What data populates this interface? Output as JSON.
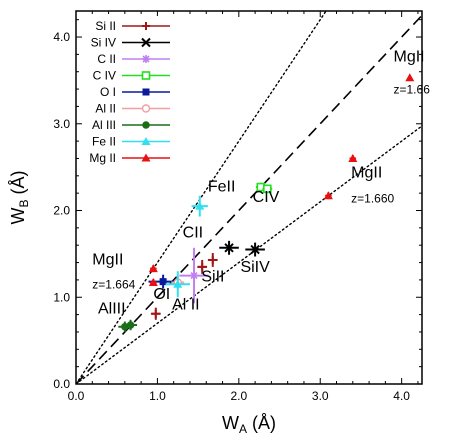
{
  "chart_data": {
    "type": "scatter",
    "title": "",
    "xlabel": {
      "main": "W",
      "sub": "A",
      "unit": " (Å)"
    },
    "ylabel": {
      "main": "W",
      "sub": "B",
      "unit": " (Å)"
    },
    "xlim": [
      0,
      4.25
    ],
    "ylim": [
      0,
      4.3
    ],
    "x_ticks": [
      0,
      1,
      2,
      3,
      4
    ],
    "x_tick_labels": [
      "0.0",
      "1.0",
      "2.0",
      "3.0",
      "4.0"
    ],
    "y_ticks": [
      0,
      1,
      2,
      3,
      4
    ],
    "y_tick_labels": [
      "0.0",
      "1.0",
      "2.0",
      "3.0",
      "4.0"
    ],
    "grid": false,
    "legend_position": "top-left",
    "reference_lines": [
      {
        "slope": 0.7,
        "style": "dotted"
      },
      {
        "slope": 1.0,
        "style": "dashed"
      },
      {
        "slope": 1.4,
        "style": "dotted"
      }
    ],
    "series": [
      {
        "name": "Si II",
        "color": "#a01818",
        "marker": "plus",
        "points": [
          {
            "x": 0.98,
            "y": 0.81,
            "xerr": 0.06,
            "yerr": 0.07
          },
          {
            "x": 1.55,
            "y": 1.35,
            "xerr": 0.06,
            "yerr": 0.08
          },
          {
            "x": 1.68,
            "y": 1.43,
            "xerr": 0.06,
            "yerr": 0.08
          }
        ]
      },
      {
        "name": "Si IV",
        "color": "#000000",
        "marker": "x",
        "points": [
          {
            "x": 1.88,
            "y": 1.57,
            "xerr": 0.12,
            "yerr": 0.08
          },
          {
            "x": 2.2,
            "y": 1.55,
            "xerr": 0.12,
            "yerr": 0.08
          }
        ]
      },
      {
        "name": "C II",
        "color": "#c080f0",
        "marker": "star",
        "points": [
          {
            "x": 1.45,
            "y": 1.25,
            "xerr": 0.18,
            "yerr": 0.32
          }
        ]
      },
      {
        "name": "C IV",
        "color": "#20e020",
        "marker": "square-open",
        "points": [
          {
            "x": 2.27,
            "y": 2.27,
            "xerr": 0.06,
            "yerr": 0.05
          },
          {
            "x": 2.35,
            "y": 2.25,
            "xerr": 0.06,
            "yerr": 0.05
          }
        ]
      },
      {
        "name": "O I",
        "color": "#0a1a9a",
        "marker": "square",
        "points": [
          {
            "x": 1.07,
            "y": 1.18,
            "xerr": 0.18,
            "yerr": 0.08
          }
        ]
      },
      {
        "name": "Al II",
        "color": "#f0a0a0",
        "marker": "circle-open",
        "points": [
          {
            "x": 1.25,
            "y": 1.17,
            "xerr": 0.08,
            "yerr": 0.08
          }
        ]
      },
      {
        "name": "Al III",
        "color": "#1a6e1a",
        "marker": "circle",
        "points": [
          {
            "x": 0.6,
            "y": 0.66,
            "xerr": 0.08,
            "yerr": 0.06
          },
          {
            "x": 0.67,
            "y": 0.68,
            "xerr": 0.08,
            "yerr": 0.06
          }
        ]
      },
      {
        "name": "Fe II",
        "color": "#30e0f0",
        "marker": "triangle",
        "points": [
          {
            "x": 1.52,
            "y": 2.05,
            "xerr": 0.1,
            "yerr": 0.12
          },
          {
            "x": 1.25,
            "y": 1.15,
            "xerr": 0.15,
            "yerr": 0.15
          }
        ]
      },
      {
        "name": "Mg II",
        "color": "#e81010",
        "marker": "triangle",
        "points": [
          {
            "x": 4.1,
            "y": 3.53,
            "xerr": 0,
            "yerr": 0
          },
          {
            "x": 3.4,
            "y": 2.6,
            "xerr": 0.04,
            "yerr": 0.04
          },
          {
            "x": 3.1,
            "y": 2.17,
            "xerr": 0.04,
            "yerr": 0.04
          },
          {
            "x": 0.95,
            "y": 1.33,
            "xerr": 0.04,
            "yerr": 0.04
          },
          {
            "x": 0.95,
            "y": 1.17,
            "xerr": 0.04,
            "yerr": 0.04
          }
        ]
      }
    ],
    "annotations": [
      {
        "text": "MgII",
        "x": 3.9,
        "y": 3.72,
        "size": "big"
      },
      {
        "text": "z=1.66",
        "x": 3.9,
        "y": 3.35,
        "size": "small"
      },
      {
        "text": "MgII",
        "x": 3.38,
        "y": 2.38,
        "size": "big"
      },
      {
        "text": "z=1.660",
        "x": 3.38,
        "y": 2.09,
        "size": "small"
      },
      {
        "text": "FeII",
        "x": 1.62,
        "y": 2.22,
        "size": "big"
      },
      {
        "text": "CIV",
        "x": 2.17,
        "y": 2.1,
        "size": "big"
      },
      {
        "text": "CII",
        "x": 1.31,
        "y": 1.69,
        "size": "big"
      },
      {
        "text": "SiII",
        "x": 1.54,
        "y": 1.18,
        "size": "big"
      },
      {
        "text": "SiIV",
        "x": 2.02,
        "y": 1.29,
        "size": "big"
      },
      {
        "text": "MgII",
        "x": 0.2,
        "y": 1.38,
        "size": "big"
      },
      {
        "text": "z=1.664",
        "x": 0.2,
        "y": 1.1,
        "size": "small"
      },
      {
        "text": "OI",
        "x": 0.95,
        "y": 0.98,
        "size": "big"
      },
      {
        "text": "Al II",
        "x": 1.18,
        "y": 0.86,
        "size": "big"
      },
      {
        "text": "AlIII",
        "x": 0.27,
        "y": 0.81,
        "size": "big"
      }
    ]
  }
}
